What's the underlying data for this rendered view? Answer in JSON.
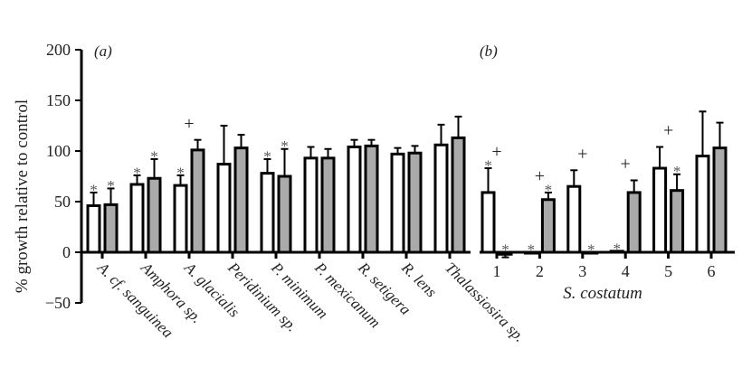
{
  "chart_data": [
    {
      "type": "bar",
      "panel_label": "(a)",
      "ylabel": "% growth relative to control",
      "ylim": [
        -50,
        200
      ],
      "yticks": [
        -50,
        0,
        50,
        100,
        150,
        200
      ],
      "grid": false,
      "categories": [
        "A. cf. sanguinea",
        "Amphora sp.",
        "A. glacialis",
        "Peridinium sp.",
        "P. minimum",
        "P. mexicanum",
        "R. setigera",
        "R. lens",
        "Thalassiosira sp."
      ],
      "series": [
        {
          "fill": "#ffffff",
          "values": [
            46,
            67,
            66,
            87,
            78,
            93,
            104,
            97,
            106
          ],
          "errors": [
            13,
            9,
            10,
            38,
            14,
            11,
            7,
            6,
            20
          ],
          "markers": [
            "*",
            "*",
            "*",
            "",
            "*",
            "",
            "",
            "",
            ""
          ]
        },
        {
          "fill": "#aaaaaa",
          "values": [
            47,
            73,
            101,
            103,
            75,
            93,
            105,
            98,
            113
          ],
          "errors": [
            16,
            19,
            10,
            13,
            27,
            9,
            6,
            7,
            21
          ],
          "markers": [
            "*",
            "*",
            "",
            "",
            "*",
            "",
            "",
            "",
            ""
          ]
        }
      ],
      "pair_markers": [
        "",
        "",
        "+",
        "",
        "",
        "",
        "",
        "",
        ""
      ]
    },
    {
      "type": "bar",
      "panel_label": "(b)",
      "xlabel": "S. costatum",
      "ylim": [
        -50,
        200
      ],
      "categories": [
        "1",
        "2",
        "3",
        "4",
        "5",
        "6"
      ],
      "series": [
        {
          "fill": "#ffffff",
          "values": [
            59,
            0,
            65,
            1,
            83,
            95
          ],
          "errors": [
            24,
            0,
            16,
            0,
            21,
            44
          ],
          "markers": [
            "*",
            "*",
            "",
            "*",
            "",
            ""
          ]
        },
        {
          "fill": "#aaaaaa",
          "values": [
            -2,
            52,
            0,
            59,
            61,
            103
          ],
          "errors": [
            3,
            7,
            0,
            12,
            16,
            25
          ],
          "markers": [
            "*",
            "*",
            "*",
            "",
            "*",
            ""
          ]
        }
      ],
      "pair_markers": [
        "+",
        "+",
        "+",
        "+",
        "+",
        ""
      ]
    }
  ]
}
